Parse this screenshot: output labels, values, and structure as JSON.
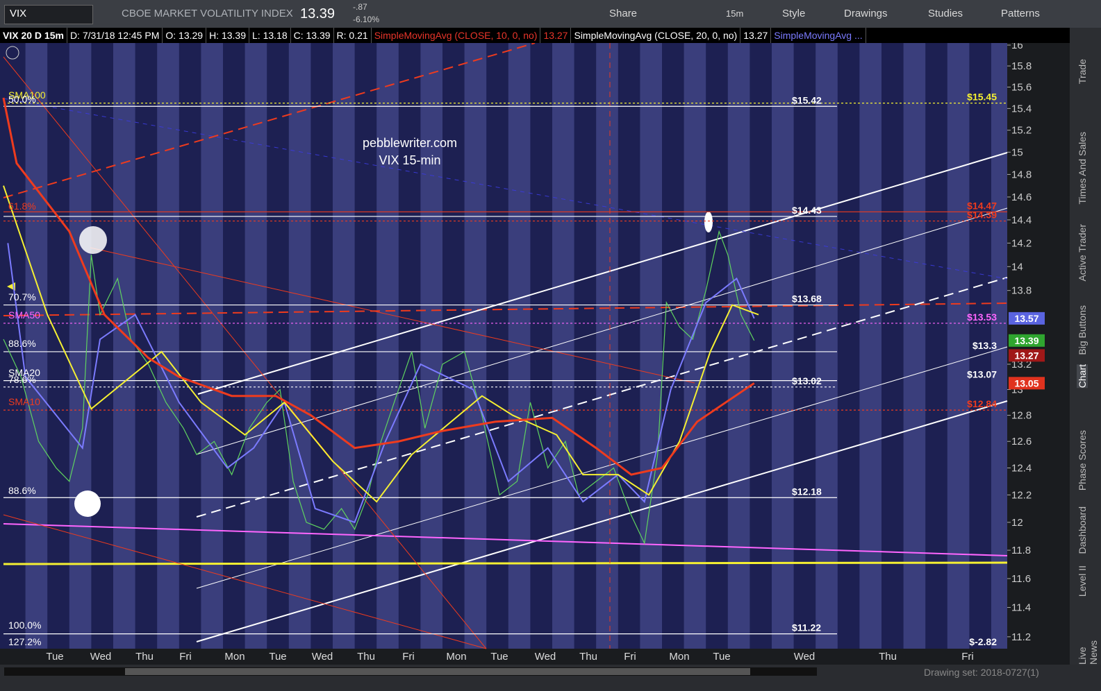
{
  "toolbar": {
    "symbol": "VIX",
    "description": "CBOE MARKET VOLATILITY INDEX",
    "last": "13.39",
    "change": "-.87",
    "change_pct": "-6.10%",
    "buttons": [
      "Share",
      "15m",
      "Style",
      "Drawings",
      "Studies",
      "Patterns"
    ]
  },
  "status": {
    "items": [
      "VIX 20 D 15m",
      "D: 7/31/18 12:45 PM",
      "O: 13.29",
      "H: 13.39",
      "L: 13.18",
      "C: 13.39",
      "R: 0.21"
    ],
    "studies": [
      {
        "text": "SimpleMovingAvg (CLOSE, 10, 0, no)",
        "value": "13.27",
        "color": "#e8352a"
      },
      {
        "text": "SimpleMovingAvg (CLOSE, 20, 0, no)",
        "value": "13.27",
        "color": "#ffffff"
      },
      {
        "text": "SimpleMovingAvg ...",
        "color": "#7b7bff"
      }
    ]
  },
  "chart_data": {
    "type": "line",
    "log_scale": true,
    "watermark": [
      "pebblewriter.com",
      "VIX 15-min"
    ],
    "x_labels": [
      "Tue",
      "Wed",
      "Thu",
      "Fri",
      "Mon",
      "Tue",
      "Wed",
      "Thu",
      "Fri",
      "Mon",
      "Tue",
      "Wed",
      "Thu",
      "Fri",
      "Mon",
      "Tue",
      "Wed",
      "Thu",
      "Fri"
    ],
    "ylim": [
      11.12,
      16.02
    ],
    "yticks": [
      11.2,
      11.4,
      11.6,
      11.8,
      12,
      12.2,
      12.4,
      12.6,
      12.8,
      13,
      13.2,
      13.8,
      14,
      14.2,
      14.4,
      14.6,
      14.8,
      15,
      15.2,
      15.4,
      15.6,
      15.8,
      16
    ],
    "series": [
      {
        "color": "#5fd35f",
        "x": [
          0,
          0.4,
          0.8,
          1.2,
          1.5,
          1.8,
          2.0,
          2.2,
          2.6,
          2.9,
          3.3,
          3.7,
          4.1,
          4.4,
          4.8,
          5.2,
          5.6,
          6.0,
          6.3,
          6.6,
          6.9,
          7.3,
          7.7,
          8.0,
          8.3,
          8.6,
          8.9,
          9.3,
          9.6,
          10.0,
          10.5,
          10.9,
          11.3,
          11.7,
          12.0,
          12.4,
          12.8,
          13.1,
          13.5,
          13.9,
          14.3,
          14.6,
          14.9,
          15.1,
          15.4,
          15.7,
          16.0,
          16.3,
          16.5,
          16.8,
          17.1
        ],
        "values": [
          13.4,
          13.1,
          12.6,
          12.4,
          12.3,
          12.7,
          14.1,
          13.6,
          13.9,
          13.4,
          13.2,
          12.9,
          12.7,
          12.5,
          12.6,
          12.35,
          12.7,
          12.9,
          13.0,
          12.3,
          12.0,
          11.95,
          12.1,
          11.95,
          12.2,
          12.6,
          12.9,
          13.3,
          12.7,
          13.2,
          13.3,
          12.8,
          12.2,
          12.3,
          12.9,
          12.4,
          12.6,
          12.2,
          12.3,
          12.4,
          12.05,
          11.85,
          12.5,
          13.7,
          13.5,
          13.4,
          13.8,
          14.3,
          14.1,
          13.6,
          13.39
        ]
      },
      {
        "color": "#7b7bff",
        "x": [
          0.1,
          0.5,
          1.8,
          2.2,
          3,
          4,
          5.1,
          5.7,
          6.4,
          7.1,
          8,
          8.7,
          9.5,
          10.7,
          11.5,
          12.4,
          13.2,
          14,
          14.6,
          15.2,
          16,
          16.7,
          17.1
        ],
        "values": [
          14.2,
          13.1,
          12.55,
          13.4,
          13.6,
          12.9,
          12.4,
          12.55,
          12.9,
          12.1,
          12.0,
          12.6,
          13.2,
          13.0,
          12.3,
          12.55,
          12.15,
          12.35,
          12.15,
          13.0,
          13.7,
          13.9,
          13.57
        ]
      },
      {
        "color": "#f5f032",
        "x": [
          0,
          1,
          2,
          3.6,
          4.5,
          5.5,
          6.4,
          7.5,
          8.5,
          9.3,
          10.9,
          11.6,
          12.6,
          13.2,
          14,
          14.7,
          15.4,
          16.1,
          16.6,
          17.2
        ],
        "values": [
          14.7,
          13.6,
          12.85,
          13.3,
          12.9,
          12.65,
          12.9,
          12.45,
          12.15,
          12.5,
          12.95,
          12.8,
          12.65,
          12.35,
          12.35,
          12.2,
          12.6,
          13.3,
          13.68,
          13.6
        ]
      },
      {
        "color": "#ee3b1e",
        "x": [
          0,
          0.3,
          1.5,
          2.3,
          3.3,
          4,
          5.2,
          6.2,
          7,
          8,
          9,
          10,
          11.2,
          12.5,
          13.5,
          14.3,
          15,
          15.8,
          17.1
        ],
        "values": [
          15.5,
          14.9,
          14.3,
          13.6,
          13.25,
          13.1,
          12.95,
          12.95,
          12.8,
          12.55,
          12.6,
          12.68,
          12.75,
          12.78,
          12.55,
          12.35,
          12.4,
          12.75,
          13.05
        ]
      }
    ],
    "price_badges": [
      {
        "value": 13.57,
        "color": "#5a64e0"
      },
      {
        "value": 13.39,
        "color": "#2fa52f"
      },
      {
        "value": 13.27,
        "color": "#a01818"
      },
      {
        "value": 13.05,
        "color": "#e0321e"
      }
    ],
    "levels": [
      {
        "label": "$15.42",
        "value": 15.42,
        "color": "#ffffff",
        "style": "solid"
      },
      {
        "label": "$15.45",
        "value": 15.45,
        "color": "#f5f032",
        "style": "dotted"
      },
      {
        "label": "$14.43",
        "value": 14.43,
        "color": "#ffffff",
        "style": "solid"
      },
      {
        "label": "$14.47",
        "value": 14.47,
        "color": "#ee3b1e",
        "style": "solid"
      },
      {
        "label": "$14.39",
        "value": 14.39,
        "color": "#ee3b1e",
        "style": "dotted"
      },
      {
        "label": "$13.68",
        "value": 13.68,
        "color": "#ffffff",
        "style": "solid"
      },
      {
        "label": "$13.53",
        "value": 13.53,
        "color": "#ff66ff",
        "style": "dotted"
      },
      {
        "label": "$13.3",
        "value": 13.3,
        "color": "#ffffff",
        "style": "solid"
      },
      {
        "label": "$13.07",
        "value": 13.07,
        "color": "#ffffff",
        "style": "solid"
      },
      {
        "label": "$13.02",
        "value": 13.02,
        "color": "#ffffff",
        "style": "dotted"
      },
      {
        "label": "$12.84",
        "value": 12.84,
        "color": "#ee3b1e",
        "style": "dotted"
      },
      {
        "label": "$12.18",
        "value": 12.18,
        "color": "#ffffff",
        "style": "solid"
      },
      {
        "label": "$11.22",
        "value": 11.22,
        "color": "#ffffff",
        "style": "solid"
      }
    ],
    "extra_label": "$-2.82",
    "fib_labels": [
      {
        "text": "SMA100",
        "color": "#f5f032"
      },
      {
        "text": "50.0%",
        "color": "#ffffff"
      },
      {
        "text": "61.8%",
        "color": "#ee3b1e"
      },
      {
        "text": "70.7%",
        "color": "#ffffff"
      },
      {
        "text": "SMA50",
        "color": "#ff66ff"
      },
      {
        "text": "88.6%",
        "color": "#ffffff"
      },
      {
        "text": "SMA20",
        "color": "#ffffff"
      },
      {
        "text": "78.6%",
        "color": "#ffffff"
      },
      {
        "text": "SMA10",
        "color": "#ee3b1e"
      },
      {
        "text": "88.6%",
        "color": "#ffffff"
      },
      {
        "text": "100.0%",
        "color": "#ffffff"
      },
      {
        "text": "127.2%",
        "color": "#ffffff"
      }
    ]
  },
  "side_tabs": [
    "Trade",
    "Times And Sales",
    "Active Trader",
    "Big Buttons",
    "Chart",
    "Phase Scores",
    "Dashboard",
    "Level II",
    "Live News"
  ],
  "footer": {
    "drawing_set": "Drawing set: 2018-0727(1)"
  }
}
